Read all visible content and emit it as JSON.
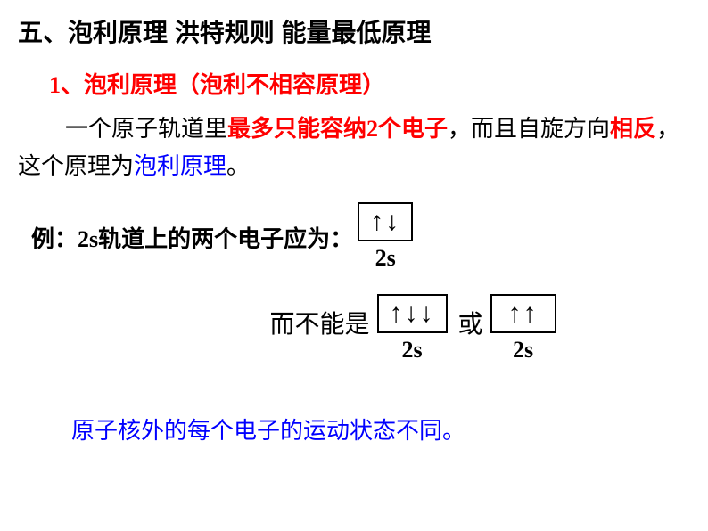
{
  "heading": "五、泡利原理  洪特规则  能量最低原理",
  "subheading": "1、泡利原理（泡利不相容原理）",
  "para": {
    "p1": "一个原子轨道里",
    "p2": "最多只能容纳2个电子",
    "p3": "，而且自旋方向",
    "p4": "相反",
    "p5": "，这个原理为",
    "p6": "泡利原理",
    "p7": "。"
  },
  "example_label": "例：2s轨道上的两个电子应为：",
  "orbital1": {
    "arrows": "↑↓",
    "label": "2s"
  },
  "cannot_label": "而不能是",
  "or_label": "或",
  "orbital2": {
    "arrows": "↑↓↓",
    "label": "2s"
  },
  "orbital3": {
    "arrows": "↑↑",
    "label": "2s"
  },
  "footer": "原子核外的每个电子的运动状态不同。",
  "colors": {
    "black": "#000000",
    "red": "#ff0000",
    "blue": "#0000ff",
    "bg": "#ffffff"
  },
  "fonts": {
    "heading_size": 28,
    "body_size": 26,
    "orbital_arrow_size": 30
  }
}
